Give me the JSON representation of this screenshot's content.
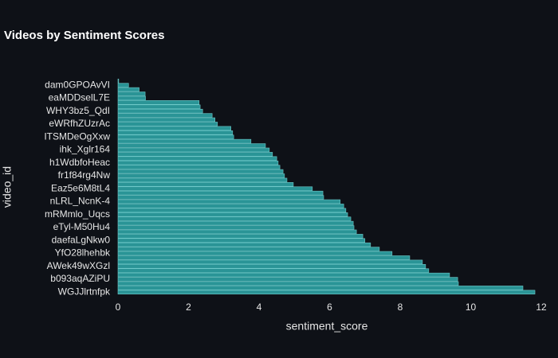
{
  "chart_data": {
    "type": "barh",
    "title": "Videos by Sentiment Scores",
    "xlabel": "sentiment_score",
    "ylabel": "video_id",
    "categories": [
      null,
      "dam0GPOAvVI",
      null,
      null,
      "eaMDDselL7E",
      null,
      null,
      "WHY3bz5_QdI",
      null,
      null,
      "eWRfhZUzrAc",
      null,
      null,
      "ITSMDeOgXxw",
      null,
      null,
      "ihk_Xglr164",
      null,
      null,
      "h1WdbfoHeac",
      null,
      null,
      "fr1f84rg4Nw",
      null,
      null,
      "Eaz5e6M8tL4",
      null,
      null,
      "nLRL_NcnK-4",
      null,
      null,
      "mRMmlo_Uqcs",
      null,
      null,
      "eTyl-M50Hu4",
      null,
      null,
      "daefaLgNkw0",
      null,
      null,
      "YfO28lhehbk",
      null,
      null,
      "AWek49wXGzl",
      null,
      null,
      "b093aqAZiPU",
      null,
      null,
      "WGJJlrtnfpk"
    ],
    "values": [
      0.02,
      0.3,
      0.6,
      0.77,
      0.78,
      2.3,
      2.33,
      2.4,
      2.67,
      2.75,
      2.82,
      3.2,
      3.25,
      3.28,
      3.77,
      4.18,
      4.29,
      4.38,
      4.5,
      4.54,
      4.59,
      4.68,
      4.72,
      4.79,
      4.97,
      5.51,
      5.81,
      5.83,
      6.3,
      6.4,
      6.46,
      6.51,
      6.6,
      6.67,
      6.69,
      6.76,
      6.94,
      7.0,
      7.16,
      7.41,
      7.77,
      8.27,
      8.63,
      8.72,
      8.81,
      9.4,
      9.63,
      9.65,
      11.48,
      11.82
    ],
    "color": "#2a9496",
    "edgecolor": "#6fc9c9",
    "xlim": [
      0,
      12
    ],
    "xticks": [
      0,
      2,
      4,
      6,
      8,
      10,
      12
    ]
  }
}
